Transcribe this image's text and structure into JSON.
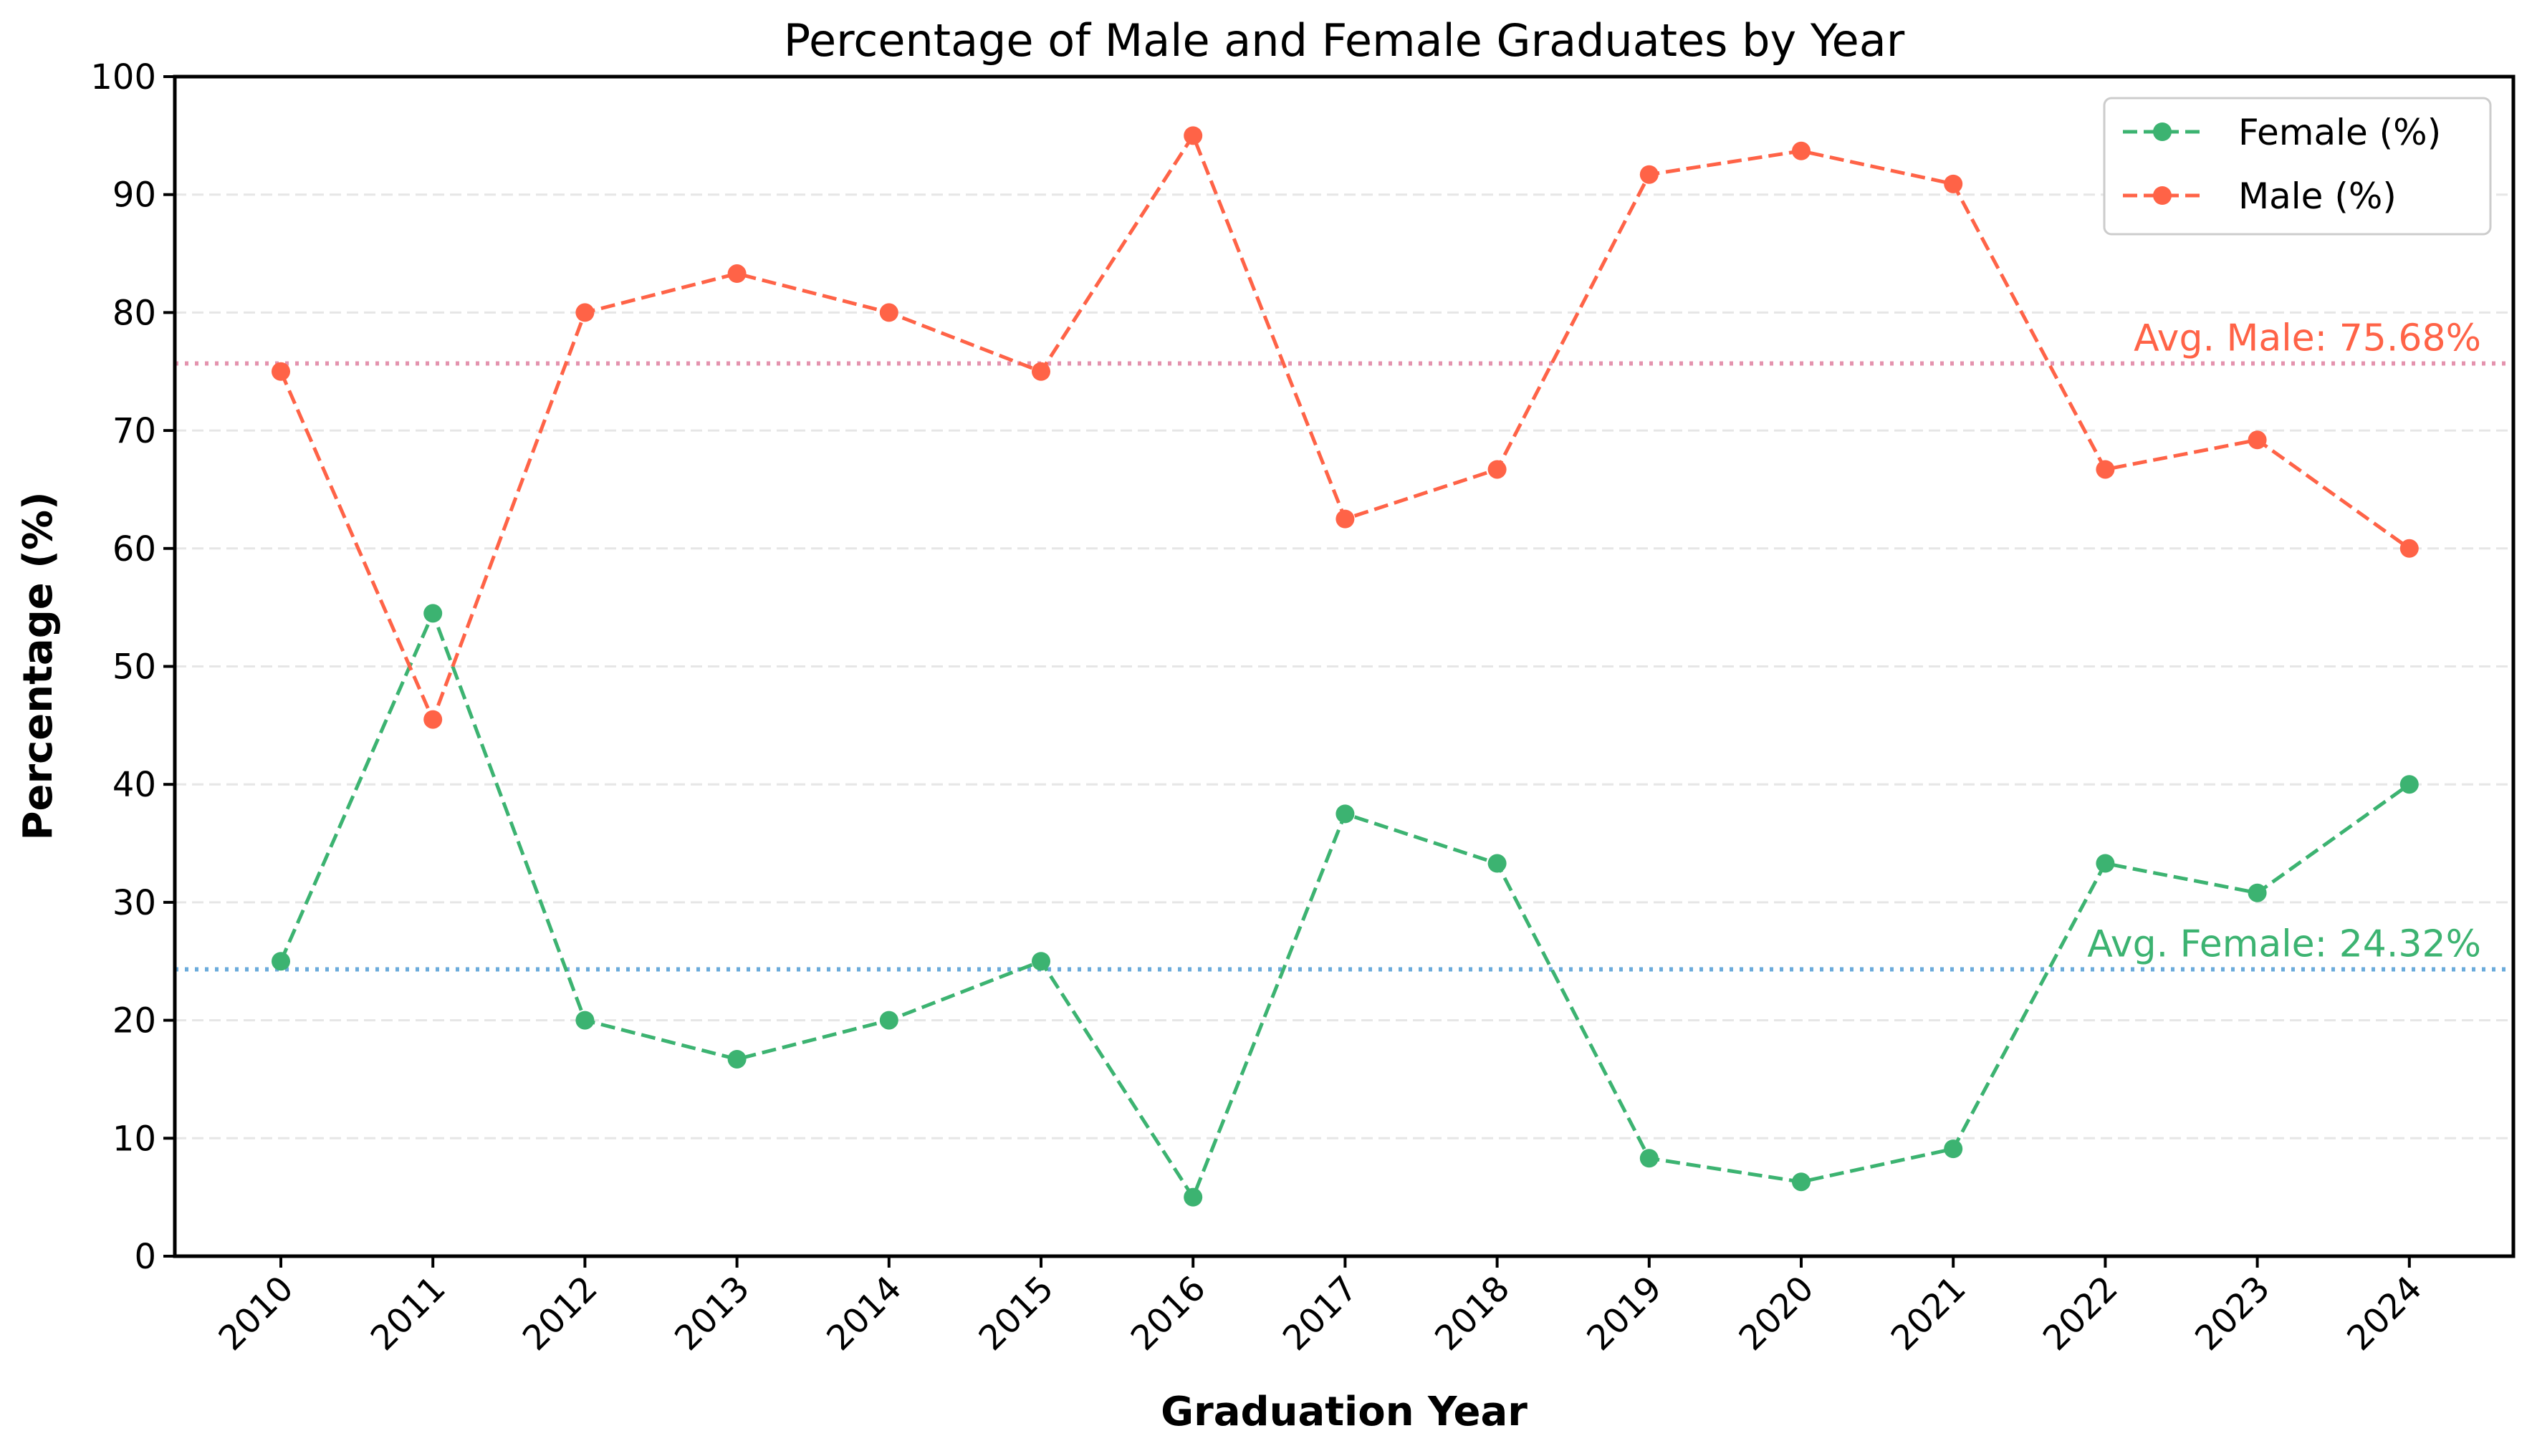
{
  "chart_data": {
    "type": "line",
    "title": "Percentage of Male and Female Graduates by Year",
    "xlabel": "Graduation Year",
    "ylabel": "Percentage (%)",
    "ylim": [
      0,
      100
    ],
    "yticks": [
      "0",
      "10",
      "20",
      "30",
      "40",
      "50",
      "60",
      "70",
      "80",
      "90",
      "100"
    ],
    "categories": [
      "2010",
      "2011",
      "2012",
      "2013",
      "2014",
      "2015",
      "2016",
      "2017",
      "2018",
      "2019",
      "2020",
      "2021",
      "2022",
      "2023",
      "2024"
    ],
    "grid": "horizontal dashed",
    "legend_position": "top-right",
    "series": [
      {
        "name": "Female (%)",
        "color": "#3cb371",
        "style": "dashed with circle markers",
        "values": [
          25.0,
          54.5,
          20.0,
          16.7,
          20.0,
          25.0,
          5.0,
          37.5,
          33.3,
          8.3,
          6.3,
          9.1,
          33.3,
          30.8,
          40.0
        ]
      },
      {
        "name": "Male (%)",
        "color": "#ff6347",
        "style": "dashed with circle markers",
        "values": [
          75.0,
          45.5,
          80.0,
          83.3,
          80.0,
          75.0,
          95.0,
          62.5,
          66.7,
          91.7,
          93.7,
          90.9,
          66.7,
          69.2,
          60.0
        ]
      }
    ],
    "reference_lines": [
      {
        "label": "Avg. Male: 75.68%",
        "value": 75.68,
        "line_color": "#db7093",
        "text_color": "#ff6347"
      },
      {
        "label": "Avg. Female: 24.32%",
        "value": 24.32,
        "line_color": "#3a8fd0",
        "text_color": "#3cb371"
      }
    ]
  }
}
